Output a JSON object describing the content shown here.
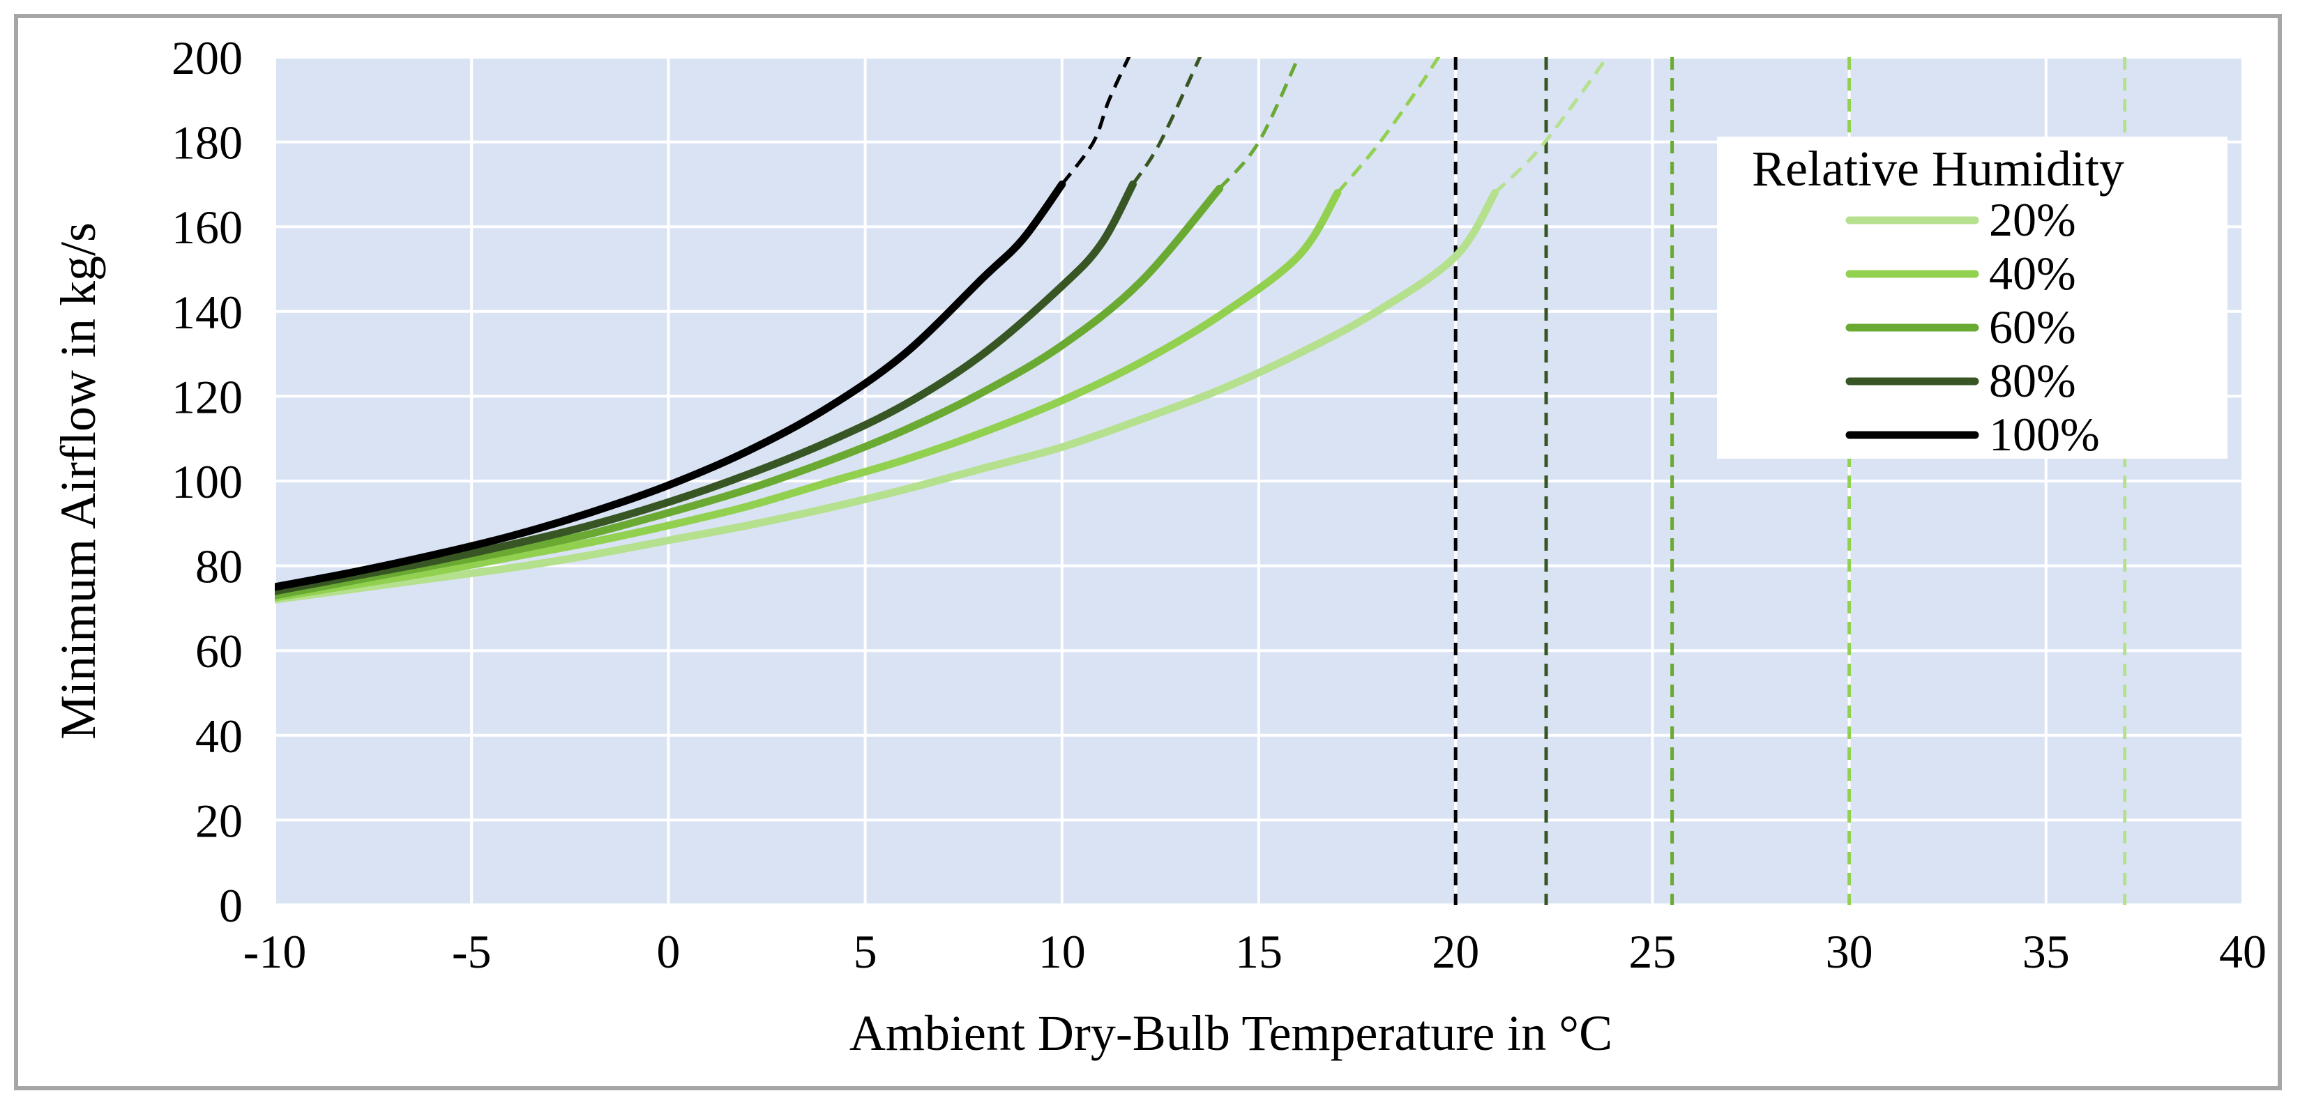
{
  "chart_data": {
    "type": "line",
    "title": "",
    "xlabel": "Ambient Dry-Bulb Temperature in °C",
    "ylabel": "Minimum Airflow in kg/s",
    "xlim": [
      -10,
      40
    ],
    "ylim": [
      0,
      200
    ],
    "xticks": [
      -10,
      -5,
      0,
      5,
      10,
      15,
      20,
      25,
      30,
      35,
      40
    ],
    "yticks": [
      0,
      20,
      40,
      60,
      80,
      100,
      120,
      140,
      160,
      180,
      200
    ],
    "xtick_labels": [
      "-10",
      "-5",
      "0",
      "5",
      "10",
      "15",
      "20",
      "25",
      "30",
      "35",
      "40"
    ],
    "ytick_labels": [
      "0",
      "20",
      "40",
      "60",
      "80",
      "100",
      "120",
      "140",
      "160",
      "180",
      "200"
    ],
    "grid": true,
    "plot_background": "#dae3f3",
    "legend": {
      "title": "Relative Humidity",
      "placement": "top-right"
    },
    "series": [
      {
        "name": "20%",
        "color": "#b5e08e",
        "x": [
          -10,
          -8,
          -6,
          -4,
          -2,
          0,
          2,
          4,
          6,
          8,
          10,
          12,
          14,
          16,
          18,
          20,
          21
        ],
        "y": [
          72,
          74.5,
          77,
          79.5,
          82.5,
          86,
          89.5,
          93.5,
          98,
          103,
          108,
          114.5,
          121.5,
          130,
          140,
          153,
          168
        ],
        "dashed_x": [
          21,
          22,
          23,
          24
        ],
        "dashed_y": [
          168,
          177,
          189,
          202
        ],
        "limit_x": 37
      },
      {
        "name": "40%",
        "color": "#92d050",
        "x": [
          -10,
          -8,
          -6,
          -4,
          -2,
          0,
          2,
          4,
          6,
          8,
          10,
          12,
          14,
          16,
          17
        ],
        "y": [
          72.5,
          75.5,
          78.5,
          82,
          85.5,
          89.5,
          94,
          99.5,
          105,
          111.5,
          119,
          128,
          139,
          153,
          168
        ],
        "dashed_x": [
          17,
          18,
          19,
          19.7
        ],
        "dashed_y": [
          168,
          179,
          192,
          202
        ],
        "limit_x": 30
      },
      {
        "name": "60%",
        "color": "#6aaa32",
        "x": [
          -10,
          -8,
          -6,
          -4,
          -2,
          0,
          2,
          4,
          6,
          8,
          10,
          12,
          14
        ],
        "y": [
          73,
          76.5,
          80,
          83.5,
          87.5,
          92.5,
          98,
          104.5,
          112,
          121,
          132,
          147,
          169
        ],
        "dashed_x": [
          14,
          15,
          16.1
        ],
        "dashed_y": [
          169,
          180,
          202
        ],
        "limit_x": 25.5
      },
      {
        "name": "80%",
        "color": "#375623",
        "x": [
          -10,
          -8,
          -6,
          -4,
          -2,
          0,
          2,
          4,
          6,
          8,
          10,
          11,
          11.8
        ],
        "y": [
          74,
          77.5,
          81,
          85,
          89.5,
          95,
          101.5,
          109,
          118,
          130,
          146,
          156,
          170
        ],
        "dashed_x": [
          11.8,
          12.5,
          13.6
        ],
        "dashed_y": [
          170,
          180,
          202
        ],
        "limit_x": 22.3
      },
      {
        "name": "100%",
        "color": "#000000",
        "x": [
          -10,
          -8,
          -6,
          -4,
          -2,
          0,
          2,
          4,
          6,
          8,
          9,
          10
        ],
        "y": [
          75,
          78.5,
          82.5,
          87,
          92.5,
          99,
          107,
          117,
          130,
          148,
          157,
          170
        ],
        "dashed_x": [
          10,
          10.8,
          11.2,
          11.8
        ],
        "dashed_y": [
          170,
          180,
          190,
          202
        ],
        "limit_x": 20
      }
    ]
  }
}
